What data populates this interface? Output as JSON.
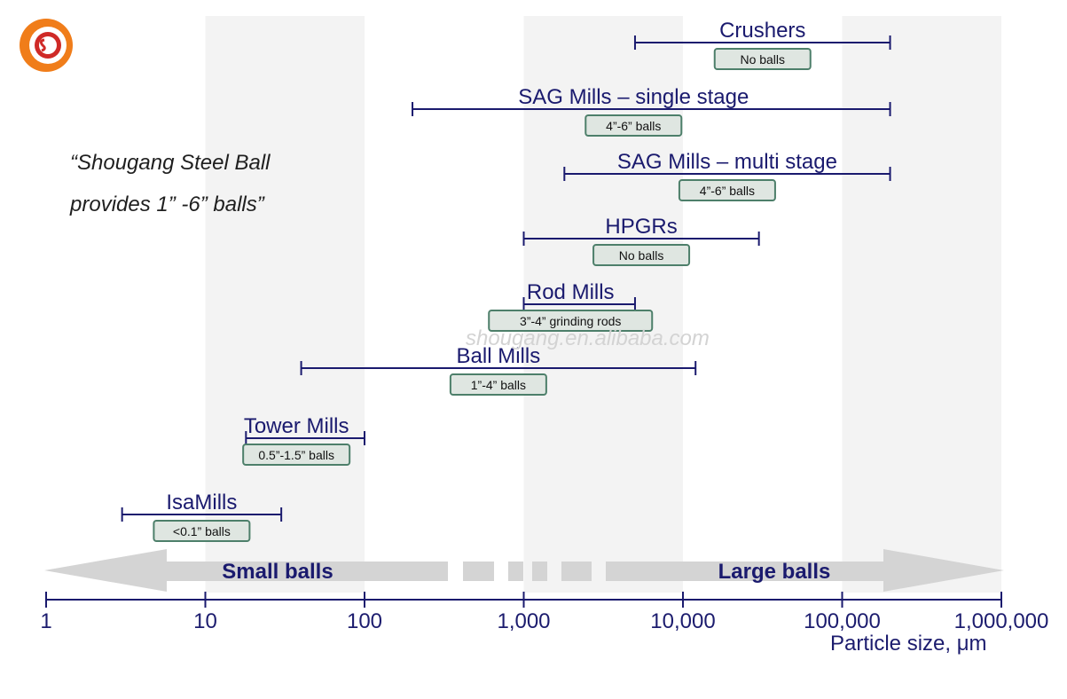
{
  "logo": {
    "name": "shougang-logo",
    "ring_color": "#f07d1a"
  },
  "quote": {
    "line1": "“Shougang Steel Ball",
    "line2": "provides 1” -6” balls”"
  },
  "watermark": "shougang.en.alibaba.com",
  "colors": {
    "range_line": "#1a1a6e",
    "label_text": "#1a1a6e",
    "box_fill": "#dfe6e1",
    "box_stroke": "#4d7f6a",
    "band": "#f3f3f3",
    "arrow": "#d4d4d4",
    "arrow_text": "#1a1a6e",
    "axis": "#1a1a6e"
  },
  "chart_data": {
    "type": "range",
    "x_scale": "log10",
    "xlim": [
      1,
      1000000
    ],
    "xticks": [
      1,
      10,
      100,
      1000,
      10000,
      100000,
      1000000
    ],
    "xtick_labels": [
      "1",
      "10",
      "100",
      "1,000",
      "10,000",
      "100,000",
      "1,000,000"
    ],
    "xlabel": "Particle size, μm",
    "shaded_bands": [
      [
        10,
        100
      ],
      [
        1000,
        10000
      ],
      [
        100000,
        1000000
      ]
    ],
    "size_arrows": {
      "left": "Small balls",
      "right": "Large balls"
    },
    "ranges": [
      {
        "name": "Crushers",
        "min": 5000,
        "max": 200000,
        "media": "No balls"
      },
      {
        "name": "SAG Mills – single stage",
        "min": 200,
        "max": 200000,
        "media": "4”-6” balls"
      },
      {
        "name": "SAG Mills – multi stage",
        "min": 1800,
        "max": 200000,
        "media": "4”-6” balls"
      },
      {
        "name": "HPGRs",
        "min": 1000,
        "max": 30000,
        "media": "No balls"
      },
      {
        "name": "Rod Mills",
        "min": 1000,
        "max": 5000,
        "media": "3”-4” grinding rods"
      },
      {
        "name": "Ball Mills",
        "min": 40,
        "max": 12000,
        "media": "1”-4” balls"
      },
      {
        "name": "Tower Mills",
        "min": 18,
        "max": 100,
        "media": "0.5”-1.5” balls"
      },
      {
        "name": "IsaMills",
        "min": 3,
        "max": 30,
        "media": "<0.1” balls"
      }
    ]
  }
}
